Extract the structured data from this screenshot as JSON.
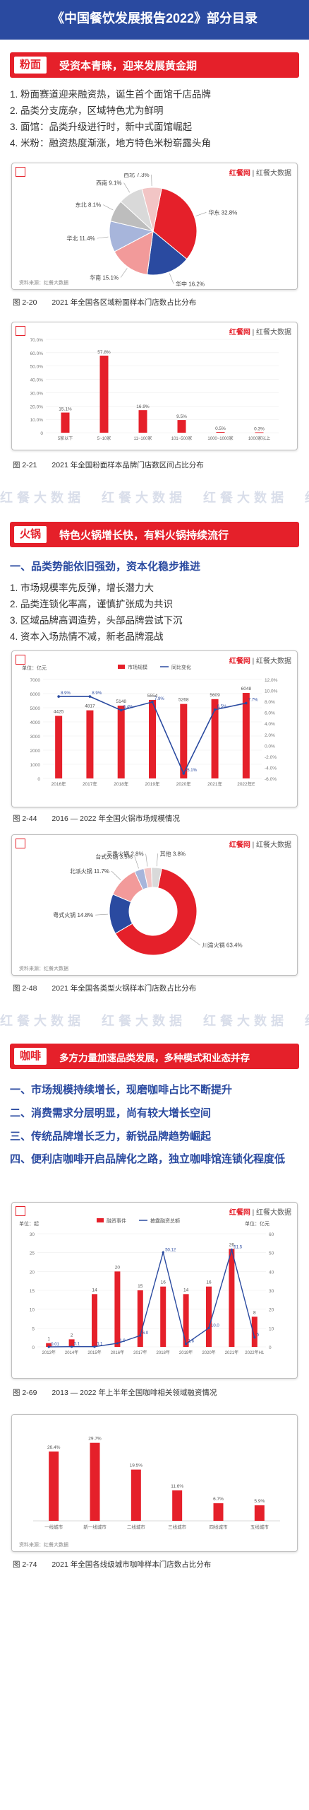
{
  "header": {
    "title": "《中国餐饮发展报告2022》部分目录"
  },
  "sections": {
    "noodle": {
      "tag": "粉面",
      "title": "受资本青睐，迎来发展黄金期",
      "points": [
        "1. 粉面赛道迎来融资热，诞生首个面馆千店品牌",
        "2. 品类分支庞杂，区域特色尤为鲜明",
        "3. 面馆：品类升级进行时，新中式面馆崛起",
        "4. 米粉：融资热度渐涨，地方特色米粉崭露头角"
      ]
    },
    "hotpot": {
      "tag": "火锅",
      "title": "特色火锅增长快，有料火锅持续流行",
      "sub_title": "一、品类势能依旧强劲，资本化稳步推进",
      "points": [
        "1. 市场规模率先反弹，增长潜力大",
        "2. 品类连锁化率高，谨慎扩张成为共识",
        "3. 区域品牌高调造势，头部品牌尝试下沉",
        "4. 资本入场热情不减，新老品牌混战"
      ]
    },
    "coffee": {
      "tag": "咖啡",
      "title": "多方力量加速品类发展，多种模式和业态并存",
      "points": [
        "一、市场规模持续增长，现磨咖啡占比不断提升",
        "二、消费需求分层明显，尚有较大增长空间",
        "三、传统品牌增长乏力，新锐品牌趋势崛起",
        "四、便利店咖啡开启品牌化之路，独立咖啡馆连锁化程度低"
      ]
    }
  },
  "brand": {
    "name": "红餐网",
    "sub": "| 红餐大数据"
  },
  "source_note": "资料来源：红餐大数据",
  "watermark": "红餐大数据",
  "captions": {
    "c1": "图 2-20　　2021 年全国各区域粉面样本门店数占比分布",
    "c2": "图 2-21　　2021 年全国粉面样本品牌门店数区间占比分布",
    "c3": "图 2-44　　2016 — 2022 年全国火锅市场规模情况",
    "c4": "图 2-48　　2021 年全国各类型火锅样本门店数占比分布",
    "c5": "图 2-69　　2013 — 2022 年上半年全国咖啡相关领域融资情况",
    "c6": "图 2-74　　2021 年全国各线级城市咖啡样本门店数占比分布"
  },
  "chart_data": [
    {
      "type": "pie",
      "categories": [
        "华东",
        "华中",
        "华南",
        "华北",
        "东北",
        "西南",
        "西北"
      ],
      "values": [
        32.8,
        16.2,
        15.1,
        11.4,
        8.1,
        9.1,
        7.3
      ],
      "colors": [
        "#e5202a",
        "#2a4aa0",
        "#f29a9a",
        "#a7b5db",
        "#bdbdbd",
        "#d9d9d9",
        "#f2c5c5"
      ],
      "labels": [
        "华东 32.8%",
        "华中 16.2%",
        "华南 15.1%",
        "华北 11.4%",
        "东北 8.1%",
        "西南 9.1%",
        "西北 7.3%"
      ]
    },
    {
      "type": "bar",
      "categories": [
        "5家以下",
        "5~10家",
        "11~100家",
        "101~500家",
        "1000~1000家",
        "1000家以上"
      ],
      "values": [
        15.1,
        57.8,
        16.9,
        9.5,
        0.5,
        0.3
      ],
      "labels": [
        "15.1%",
        "57.8%",
        "16.9%",
        "9.5%",
        "0.5%",
        "0.3%"
      ],
      "ylim": [
        0,
        70
      ],
      "yticks": [
        "0",
        "10.0%",
        "20.0%",
        "30.0%",
        "40.0%",
        "50.0%",
        "60.0%",
        "70.0%"
      ]
    },
    {
      "type": "bar",
      "categories": [
        "2016年",
        "2017年",
        "2018年",
        "2019年",
        "2020年",
        "2021年",
        "2022年E"
      ],
      "series": [
        {
          "name": "市场规模",
          "values": [
            4425,
            4817,
            5148,
            5554,
            5268,
            5609,
            6048
          ]
        },
        {
          "name": "同比变化",
          "values": [
            8.9,
            8.9,
            6.4,
            7.9,
            -5.1,
            6.5,
            7.7
          ]
        }
      ],
      "ylabel": "单位：亿元",
      "ylim": [
        0,
        7000
      ],
      "y2lim": [
        -6,
        12
      ],
      "yticks": [
        "0",
        "1000",
        "2000",
        "3000",
        "4000",
        "5000",
        "6000",
        "7000"
      ],
      "y2ticks": [
        "-6.0%",
        "-4.0%",
        "-2.0%",
        "0.0%",
        "2.0%",
        "4.0%",
        "6.0%",
        "8.0%",
        "10.0%",
        "12.0%"
      ]
    },
    {
      "type": "pie",
      "categories": [
        "川渝火锅",
        "粤式火锅",
        "北派火锅",
        "台式火锅",
        "云贵火锅",
        "其他"
      ],
      "values": [
        63.4,
        14.8,
        11.7,
        3.5,
        2.8,
        3.8
      ],
      "colors": [
        "#e5202a",
        "#2a4aa0",
        "#f29a9a",
        "#a7b5db",
        "#f2c5c5",
        "#d9d9d9"
      ],
      "labels": [
        "川渝火锅 63.4%",
        "粤式火锅 14.8%",
        "北派火锅 11.7%",
        "台式火锅 3.5%",
        "云贵火锅 2.8%",
        "其他 3.8%"
      ]
    },
    {
      "type": "bar",
      "categories": [
        "2013年",
        "2014年",
        "2015年",
        "2016年",
        "2017年",
        "2018年",
        "2019年",
        "2020年",
        "2021年",
        "2022年H1"
      ],
      "series": [
        {
          "name": "融资事件",
          "values": [
            1,
            2,
            14,
            20,
            15,
            16,
            14,
            16,
            26,
            8
          ]
        },
        {
          "name": "披露融资总额",
          "values": [
            0.01,
            0.1,
            0.1,
            1.9,
            6.0,
            50.12,
            1.6,
            10.0,
            51.5,
            5
          ]
        }
      ],
      "ylabel": "单位：起",
      "y2label": "单位：亿元",
      "ylim": [
        0,
        30
      ],
      "y2lim": [
        0,
        60
      ],
      "yticks": [
        "0",
        "5",
        "10",
        "15",
        "20",
        "25",
        "30"
      ],
      "y2ticks": [
        "0",
        "10",
        "20",
        "30",
        "40",
        "50",
        "60"
      ],
      "bar_labels": [
        "1",
        "2",
        "14",
        "20",
        "15",
        "16",
        "14",
        "16",
        "26",
        "8"
      ],
      "line_labels": [
        "0.01",
        "0.1",
        "0.1",
        "1.9",
        "6.0",
        "50.12",
        "1.6",
        "10.0",
        "51.5",
        "5"
      ]
    },
    {
      "type": "bar",
      "categories": [
        "一线城市",
        "新一线城市",
        "二线城市",
        "三线城市",
        "四线城市",
        "五线城市"
      ],
      "values": [
        26.4,
        29.7,
        19.5,
        11.6,
        6.7,
        5.9
      ],
      "labels": [
        "26.4%",
        "29.7%",
        "19.5%",
        "11.6%",
        "6.7%",
        "5.9%"
      ],
      "ylim": [
        0,
        35
      ]
    }
  ]
}
